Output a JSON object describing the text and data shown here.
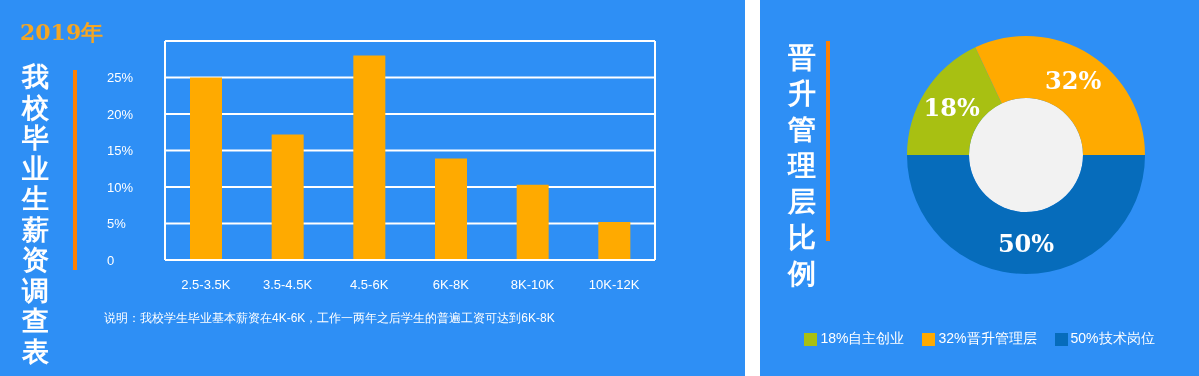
{
  "chart_data": [
    {
      "type": "bar",
      "title": "2019年",
      "subtitle": "我校毕业生薪资调查表",
      "categories": [
        "2.5-3.5K",
        "3.5-4.5K",
        "4.5-6K",
        "6K-8K",
        "8K-10K",
        "10K-12K"
      ],
      "values": [
        25,
        17.2,
        28,
        13.9,
        10.3,
        5.2
      ],
      "color": "#ffaa00",
      "ylim": [
        0,
        30
      ],
      "yticks": [
        0,
        {
          "value": 5,
          "label": "5%"
        },
        {
          "value": 10,
          "label": "10%"
        },
        {
          "value": 15,
          "label": "15%"
        },
        {
          "value": 20,
          "label": "20%"
        },
        {
          "value": 25,
          "label": "25%"
        }
      ],
      "grid": "y",
      "annotations": [
        "说明：我校学生毕业基本薪资在4K-6K，工作一两年之后学生的普遍工资可达到6K-8K"
      ]
    },
    {
      "type": "donut",
      "title": "晋升管理层比例",
      "categories": [
        "18%自主创业",
        "32%晋升管理层",
        "50%技术岗位"
      ],
      "values": [
        18,
        32,
        50
      ],
      "colors": [
        "#a8c012",
        "#ffaa00",
        "#066cbb"
      ],
      "value_labels": [
        "18%",
        "32%",
        "50%"
      ],
      "legend": "bottom"
    }
  ]
}
